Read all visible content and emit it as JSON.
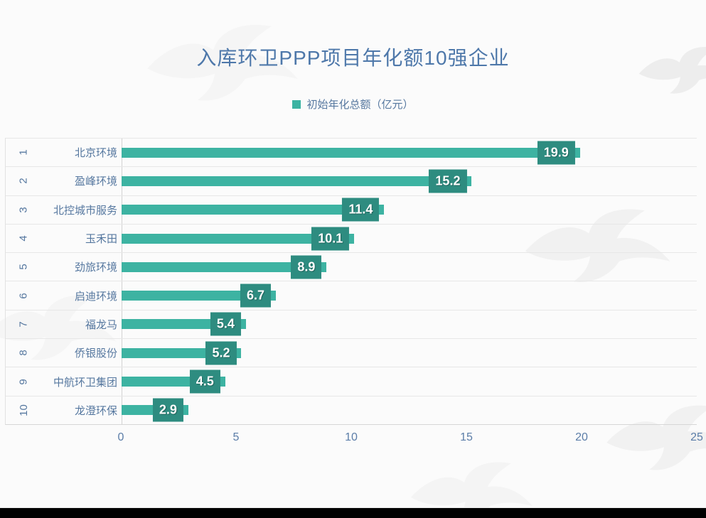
{
  "page": {
    "title": "入库环卫PPP项目年化额10强企业",
    "legend_label": "初始年化总额（亿元）"
  },
  "chart_data": {
    "type": "bar",
    "orientation": "horizontal",
    "title": "入库环卫PPP项目年化额10强企业",
    "legend": [
      "初始年化总额（亿元）"
    ],
    "ranks": [
      "1",
      "2",
      "3",
      "4",
      "5",
      "6",
      "7",
      "8",
      "9",
      "10"
    ],
    "categories": [
      "北京环境",
      "盈峰环境",
      "北控城市服务",
      "玉禾田",
      "劲旅环境",
      "启迪环境",
      "福龙马",
      "侨银股份",
      "中航环卫集团",
      "龙澄环保"
    ],
    "values": [
      19.9,
      15.2,
      11.4,
      10.1,
      8.9,
      6.7,
      5.4,
      5.2,
      4.5,
      2.9
    ],
    "xlabel": "",
    "ylabel": "",
    "xlim": [
      0,
      25
    ],
    "x_ticks": [
      0,
      5,
      10,
      15,
      20,
      25
    ],
    "grid": false,
    "legend_position": "top",
    "data_labels": "inside-end",
    "colors": {
      "bar": "#3db3a2",
      "data_label_bg": "#2e8c80",
      "data_label_text": "#ffffff",
      "axis_text": "#55779f",
      "title_text": "#4e78aa",
      "legend_marker": "#3bb3a2"
    }
  }
}
